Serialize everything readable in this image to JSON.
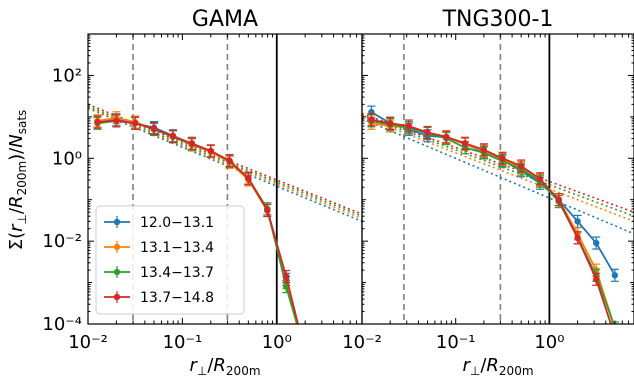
{
  "chart_data": {
    "type": "line",
    "ylabel": "Σ(r⊥/R200m)/Nsats",
    "xscale": "log",
    "yscale": "log",
    "xlim": [
      0.01,
      8
    ],
    "ylim": [
      0.0001,
      1000
    ],
    "xticks": [
      "10⁻²",
      "10⁻¹",
      "10⁰"
    ],
    "yticks": [
      "10⁻⁴",
      "10⁻²",
      "10⁰",
      "10²"
    ],
    "legend": {
      "position": "lower-left",
      "entries": [
        "12.0−13.1",
        "13.1−13.4",
        "13.4−13.7",
        "13.7−14.8"
      ]
    },
    "colors": [
      "#1f77b4",
      "#ff7f0e",
      "#2ca02c",
      "#d62728"
    ],
    "panels": [
      {
        "title": "GAMA",
        "xlabel": "r⊥/R200m",
        "vlines_dashed": [
          0.03,
          0.3
        ],
        "vline_solid": 1.0,
        "series": [
          {
            "name": "12.0−13.1",
            "x": [
              0.0126,
              0.02,
              0.0316,
              0.05,
              0.0794,
              0.126,
              0.2,
              0.316,
              0.5,
              0.794,
              1.26,
              2.0
            ],
            "y": [
              7.5,
              8.5,
              7.0,
              5.5,
              3.5,
              2.2,
              1.5,
              0.85,
              0.32,
              0.06,
              0.0012,
              2e-05
            ],
            "fit_x": [
              0.01,
              8
            ],
            "fit_y": [
              16,
              0.03
            ]
          },
          {
            "name": "13.1−13.4",
            "x": [
              0.0126,
              0.02,
              0.0316,
              0.05,
              0.0794,
              0.126,
              0.2,
              0.316,
              0.5,
              0.794,
              1.26,
              2.0
            ],
            "y": [
              8.0,
              9.5,
              7.5,
              5.0,
              3.3,
              2.1,
              1.45,
              0.8,
              0.3,
              0.055,
              0.001,
              2e-05
            ],
            "fit_x": [
              0.01,
              8
            ],
            "fit_y": [
              17,
              0.035
            ]
          },
          {
            "name": "13.4−13.7",
            "x": [
              0.0126,
              0.02,
              0.0316,
              0.05,
              0.0794,
              0.126,
              0.2,
              0.316,
              0.5,
              0.794,
              1.26,
              2.0
            ],
            "y": [
              7.0,
              8.0,
              7.0,
              5.0,
              3.3,
              2.2,
              1.5,
              0.85,
              0.33,
              0.06,
              0.0008,
              2e-05
            ],
            "fit_x": [
              0.01,
              8
            ],
            "fit_y": [
              18,
              0.04
            ]
          },
          {
            "name": "13.7−14.8",
            "x": [
              0.0126,
              0.02,
              0.0316,
              0.05,
              0.0794,
              0.126,
              0.2,
              0.316,
              0.5,
              0.794,
              1.26,
              2.0
            ],
            "y": [
              7.5,
              8.0,
              7.0,
              5.2,
              3.4,
              2.3,
              1.5,
              0.88,
              0.33,
              0.055,
              0.0014,
              2e-05
            ],
            "fit_x": [
              0.01,
              8
            ],
            "fit_y": [
              20,
              0.045
            ]
          }
        ]
      },
      {
        "title": "TNG300-1",
        "xlabel": "r⊥/R200m",
        "vlines_dashed": [
          0.028,
          0.3
        ],
        "vline_solid": 1.0,
        "series": [
          {
            "name": "12.0−13.1",
            "x": [
              0.0126,
              0.02,
              0.0316,
              0.05,
              0.0794,
              0.126,
              0.2,
              0.316,
              0.5,
              0.794,
              1.26,
              2.0,
              3.16,
              5.0
            ],
            "y": [
              13.0,
              7.0,
              5.0,
              3.5,
              3.2,
              2.2,
              1.4,
              0.9,
              0.5,
              0.25,
              0.1,
              0.03,
              0.009,
              0.0015
            ],
            "fit_x": [
              0.01,
              8
            ],
            "fit_y": [
              9,
              0.015
            ]
          },
          {
            "name": "13.1−13.4",
            "x": [
              0.0126,
              0.02,
              0.0316,
              0.05,
              0.0794,
              0.126,
              0.2,
              0.316,
              0.5,
              0.794,
              1.26,
              2.0,
              3.16,
              5.0
            ],
            "y": [
              7.0,
              6.0,
              5.5,
              4.0,
              3.2,
              2.2,
              1.5,
              0.95,
              0.6,
              0.3,
              0.1,
              0.015,
              0.002,
              8e-05
            ],
            "fit_x": [
              0.01,
              8
            ],
            "fit_y": [
              10,
              0.03
            ]
          },
          {
            "name": "13.4−13.7",
            "x": [
              0.0126,
              0.02,
              0.0316,
              0.05,
              0.0794,
              0.126,
              0.2,
              0.316,
              0.5,
              0.794,
              1.26,
              2.0,
              3.16,
              5.0
            ],
            "y": [
              8.0,
              6.5,
              5.5,
              4.0,
              3.0,
              1.8,
              1.35,
              0.85,
              0.55,
              0.28,
              0.09,
              0.012,
              0.0015,
              8e-05
            ],
            "fit_x": [
              0.01,
              8
            ],
            "fit_y": [
              11,
              0.04
            ]
          },
          {
            "name": "13.7−14.8",
            "x": [
              0.0126,
              0.02,
              0.0316,
              0.05,
              0.0794,
              0.126,
              0.2,
              0.316,
              0.5,
              0.794,
              1.26,
              2.0,
              3.16,
              5.0
            ],
            "y": [
              8.5,
              7.0,
              6.0,
              4.2,
              3.3,
              2.3,
              1.6,
              1.0,
              0.65,
              0.32,
              0.1,
              0.012,
              0.0012,
              5e-05
            ],
            "fit_x": [
              0.01,
              8
            ],
            "fit_y": [
              12,
              0.05
            ]
          }
        ]
      }
    ]
  }
}
